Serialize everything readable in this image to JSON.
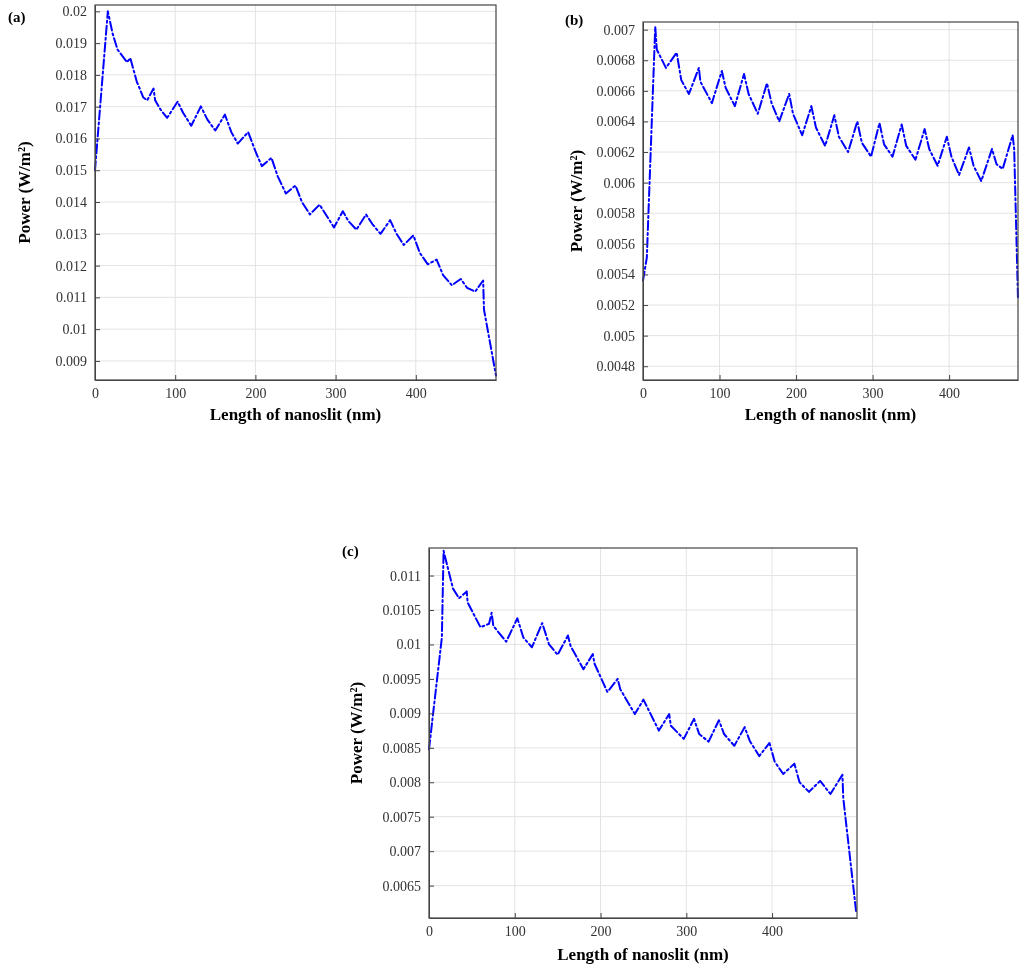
{
  "chart_data": [
    {
      "type": "line",
      "title": "(a)",
      "xlabel": "Length of nanoslit (nm)",
      "ylabel": "Power (W/m²)",
      "xlim": [
        0,
        500
      ],
      "xticks": [
        0,
        100,
        200,
        300,
        400
      ],
      "ylim": [
        0.0084,
        0.0202
      ],
      "yticks": [
        0.009,
        0.01,
        0.011,
        0.012,
        0.013,
        0.014,
        0.015,
        0.016,
        0.017,
        0.018,
        0.019,
        0.02
      ],
      "grid": true,
      "line_style": "dashed",
      "series": [
        {
          "color": "#0000ff",
          "x": [
            0,
            16,
            22,
            28,
            40,
            44,
            52,
            60,
            65,
            73,
            75,
            82,
            90,
            103,
            110,
            120,
            132,
            140,
            150,
            162,
            170,
            178,
            191,
            200,
            208,
            220,
            228,
            238,
            250,
            258,
            268,
            280,
            288,
            298,
            309,
            316,
            326,
            338,
            346,
            356,
            368,
            376,
            385,
            397,
            405,
            415,
            426,
            434,
            445,
            456,
            464,
            474,
            484,
            485,
            500
          ],
          "values": [
            0.015,
            0.02,
            0.0193,
            0.0188,
            0.0184,
            0.01853,
            0.0178,
            0.0173,
            0.0172,
            0.01757,
            0.0172,
            0.0169,
            0.01665,
            0.01716,
            0.0168,
            0.0164,
            0.01701,
            0.0166,
            0.01625,
            0.01675,
            0.0162,
            0.01584,
            0.0162,
            0.0156,
            0.01513,
            0.01539,
            0.0148,
            0.01427,
            0.01452,
            0.014,
            0.01361,
            0.01392,
            0.0136,
            0.0132,
            0.01371,
            0.0134,
            0.01313,
            0.01361,
            0.0133,
            0.013,
            0.01343,
            0.013,
            0.01265,
            0.01295,
            0.0124,
            0.01204,
            0.01219,
            0.0117,
            0.01138,
            0.01158,
            0.0113,
            0.01118,
            0.01153,
            0.01062,
            0.00854
          ]
        }
      ]
    },
    {
      "type": "line",
      "title": "(b)",
      "xlabel": "Length of nanoslit (nm)",
      "ylabel": "Power (W/m²)",
      "xlim": [
        0,
        490
      ],
      "xticks": [
        0,
        100,
        200,
        300,
        400
      ],
      "ylim": [
        0.00471,
        0.00705
      ],
      "yticks": [
        0.0048,
        0.005,
        0.0052,
        0.0054,
        0.0056,
        0.0058,
        0.006,
        0.0062,
        0.0064,
        0.0066,
        0.0068,
        0.007
      ],
      "grid": true,
      "line_style": "dashed",
      "series": [
        {
          "color": "#0000ff",
          "x": [
            0,
            5,
            16,
            18,
            30,
            44,
            50,
            60,
            73,
            75,
            90,
            103,
            108,
            120,
            132,
            138,
            150,
            162,
            168,
            178,
            191,
            196,
            208,
            220,
            226,
            238,
            250,
            256,
            268,
            280,
            286,
            298,
            309,
            315,
            326,
            338,
            344,
            356,
            368,
            374,
            385,
            397,
            403,
            413,
            426,
            432,
            442,
            456,
            462,
            470,
            483,
            485,
            490
          ],
          "values": [
            0.00536,
            0.00551,
            0.00702,
            0.00687,
            0.00675,
            0.00685,
            0.00667,
            0.00658,
            0.00675,
            0.00666,
            0.00652,
            0.00673,
            0.00662,
            0.0065,
            0.00671,
            0.00658,
            0.00645,
            0.00665,
            0.00652,
            0.0064,
            0.00658,
            0.00645,
            0.00631,
            0.0065,
            0.00636,
            0.00624,
            0.00644,
            0.0063,
            0.0062,
            0.0064,
            0.00626,
            0.00617,
            0.00639,
            0.00625,
            0.00617,
            0.00638,
            0.00624,
            0.00615,
            0.00635,
            0.00622,
            0.00611,
            0.0063,
            0.00617,
            0.00605,
            0.00623,
            0.00611,
            0.00601,
            0.00622,
            0.00612,
            0.00609,
            0.00631,
            0.00622,
            0.00524
          ]
        }
      ]
    },
    {
      "type": "line",
      "title": "(c)",
      "xlabel": "Length of nanoslit (nm)",
      "ylabel": "Power (W/m²)",
      "xlim": [
        0,
        499
      ],
      "xticks": [
        0,
        100,
        200,
        300,
        400
      ],
      "ylim": [
        0.00603,
        0.0114
      ],
      "yticks": [
        0.0065,
        0.007,
        0.0075,
        0.008,
        0.0085,
        0.009,
        0.0095,
        0.01,
        0.0105,
        0.011
      ],
      "grid": true,
      "line_style": "dashed",
      "series": [
        {
          "color": "#0000ff",
          "x": [
            0,
            15,
            17,
            28,
            35,
            44,
            45,
            60,
            70,
            73,
            75,
            90,
            103,
            110,
            120,
            132,
            140,
            150,
            162,
            165,
            180,
            191,
            193,
            208,
            220,
            223,
            240,
            250,
            258,
            268,
            280,
            282,
            297,
            309,
            315,
            326,
            338,
            344,
            356,
            368,
            374,
            385,
            397,
            403,
            413,
            426,
            432,
            443,
            456,
            468,
            482,
            483,
            498
          ],
          "values": [
            0.00848,
            0.0101,
            0.01136,
            0.01081,
            0.01067,
            0.01077,
            0.01061,
            0.01025,
            0.0103,
            0.01046,
            0.01027,
            0.01004,
            0.01038,
            0.0101,
            0.00996,
            0.01031,
            0.01,
            0.00985,
            0.01013,
            0.00998,
            0.00964,
            0.00986,
            0.00972,
            0.00931,
            0.0095,
            0.00935,
            0.00899,
            0.0092,
            0.009,
            0.00875,
            0.00899,
            0.00882,
            0.00863,
            0.00892,
            0.0087,
            0.00859,
            0.0089,
            0.0087,
            0.00853,
            0.0088,
            0.0086,
            0.00838,
            0.00857,
            0.0083,
            0.00812,
            0.00827,
            0.008,
            0.00786,
            0.00802,
            0.00783,
            0.00811,
            0.00777,
            0.00612
          ]
        }
      ]
    }
  ]
}
